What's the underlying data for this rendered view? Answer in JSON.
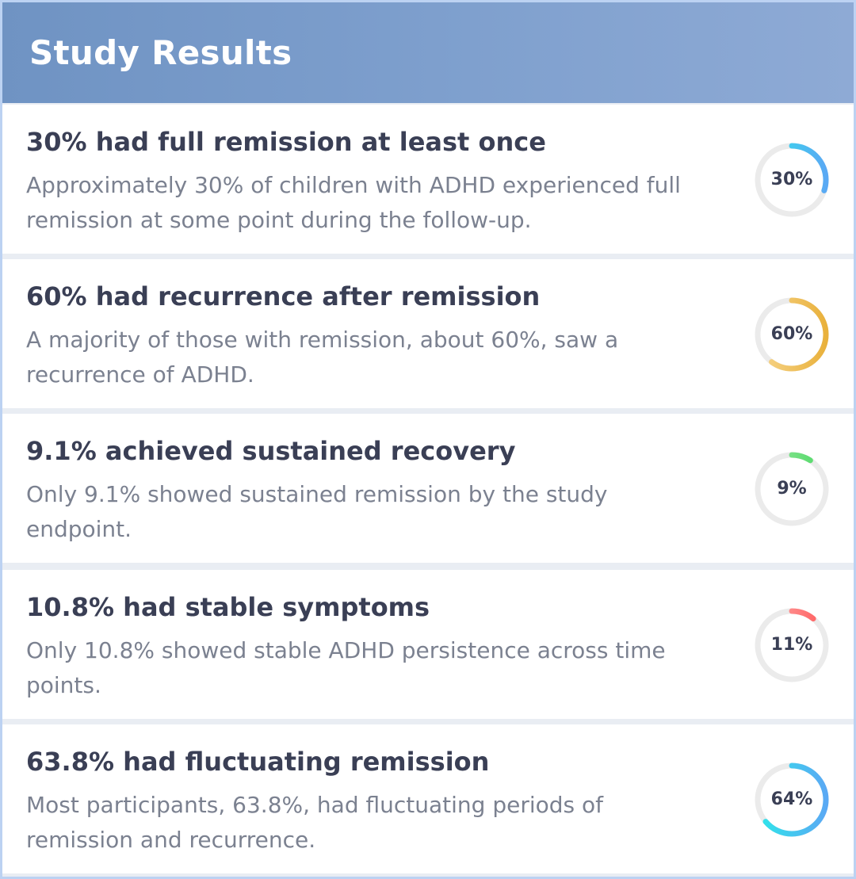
{
  "header": {
    "title": "Study Results"
  },
  "results": [
    {
      "title": "30% had full remission at least once",
      "description": "Approximately 30% of children with ADHD experienced full remission at some point during the follow-up.",
      "percent_label": "30%",
      "value": 30,
      "color_start": "#2ee6ea",
      "color_end": "#5aa9f4"
    },
    {
      "title": "60% had recurrence after remission",
      "description": "A majority of those with remission, about 60%, saw a recurrence of ADHD.",
      "percent_label": "60%",
      "value": 60,
      "color_start": "#f7d58b",
      "color_end": "#e9b13c"
    },
    {
      "title": "9.1% achieved sustained recovery",
      "description": "Only 9.1% showed sustained remission by the study endpoint.",
      "percent_label": "9%",
      "value": 9.1,
      "color_start": "#9ee6a2",
      "color_end": "#4cd964"
    },
    {
      "title": "10.8% had stable symptoms",
      "description": "Only 10.8% showed stable ADHD persistence across time points.",
      "percent_label": "11%",
      "value": 10.8,
      "color_start": "#ffb3b3",
      "color_end": "#ff5a5a"
    },
    {
      "title": "63.8% had fluctuating remission",
      "description": "Most participants, 63.8%, had fluctuating periods of remission and recurrence.",
      "percent_label": "64%",
      "value": 63.8,
      "color_start": "#2ee6ea",
      "color_end": "#5aa9f4"
    }
  ],
  "colors": {
    "track": "#ebebeb",
    "title_text": "#3a3f55",
    "desc_text": "#7b8190"
  }
}
